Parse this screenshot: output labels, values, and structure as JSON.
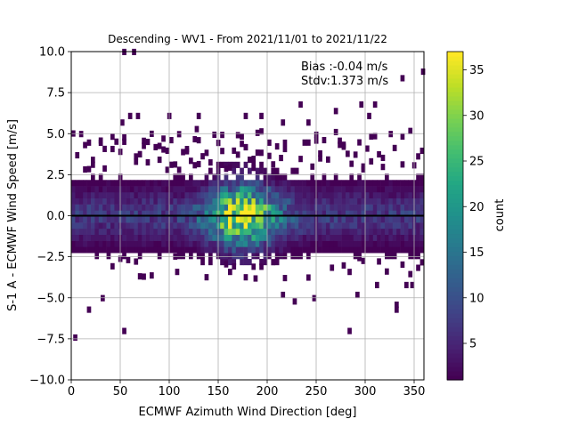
{
  "chart_data": {
    "type": "heatmap",
    "title": "Descending - WV1 - From 2021/11/01 to 2021/11/22",
    "xlabel": "ECMWF Azimuth Wind Direction [deg]",
    "ylabel": "S-1 A - ECMWF Wind Speed [m/s]",
    "xlim": [
      0,
      360
    ],
    "ylim": [
      -10,
      10
    ],
    "xticks": [
      0,
      50,
      100,
      150,
      200,
      250,
      300,
      350
    ],
    "yticks": [
      -10.0,
      -7.5,
      -5.0,
      -2.5,
      0.0,
      2.5,
      5.0,
      7.5,
      10.0
    ],
    "ytick_labels": [
      "−10.0",
      "−7.5",
      "−5.0",
      "−2.5",
      "0.0",
      "2.5",
      "5.0",
      "7.5",
      "10.0"
    ],
    "grid": true,
    "annotations": [
      "Bias :-0.04 m/s",
      "Stdv:1.373 m/s"
    ],
    "reference_line_y": 0.0,
    "colormap": "viridis",
    "colorbar": {
      "label": "count",
      "min": 1,
      "max": 37,
      "ticks": [
        5,
        10,
        15,
        20,
        25,
        30,
        35
      ]
    },
    "bin_width_x": 4,
    "bin_width_y": 0.37,
    "description_of_density": "counts concentrated near y=0, strongest between x=130 and x=210 (peak ~37 near x=150-200), decreasing with |y|; sparse outliers up to |y|~10",
    "outliers": [
      {
        "x": 52,
        "y": 9.8
      },
      {
        "x": 62,
        "y": 9.8
      },
      {
        "x": 357,
        "y": 8.6
      },
      {
        "x": 336,
        "y": 8.2
      },
      {
        "x": 232,
        "y": 6.6
      },
      {
        "x": 294,
        "y": 6.6
      },
      {
        "x": 268,
        "y": 6.2
      },
      {
        "x": 308,
        "y": 6.6
      },
      {
        "x": 58,
        "y": 5.9
      },
      {
        "x": 66,
        "y": 5.9
      },
      {
        "x": 98,
        "y": 5.9
      },
      {
        "x": 176,
        "y": 5.9
      },
      {
        "x": 128,
        "y": 5.9
      },
      {
        "x": 192,
        "y": 5.9
      },
      {
        "x": 302,
        "y": 5.9
      },
      {
        "x": 50,
        "y": 5.5
      },
      {
        "x": 214,
        "y": 5.5
      },
      {
        "x": 240,
        "y": 5.5
      },
      {
        "x": 176,
        "y": 4.0
      },
      {
        "x": 248,
        "y": 4.4
      },
      {
        "x": 28,
        "y": 4.4
      },
      {
        "x": 8,
        "y": 4.8
      },
      {
        "x": 324,
        "y": 4.8
      },
      {
        "x": 126,
        "y": 5.1
      },
      {
        "x": 2,
        "y": -7.6
      },
      {
        "x": 52,
        "y": -7.2
      },
      {
        "x": 16,
        "y": -5.9
      },
      {
        "x": 30,
        "y": -5.2
      },
      {
        "x": 214,
        "y": -5.0
      },
      {
        "x": 226,
        "y": -5.4
      },
      {
        "x": 246,
        "y": -5.2
      },
      {
        "x": 330,
        "y": -5.6
      },
      {
        "x": 340,
        "y": -4.4
      },
      {
        "x": 346,
        "y": -4.4
      },
      {
        "x": 310,
        "y": -4.4
      },
      {
        "x": 290,
        "y": -5.0
      },
      {
        "x": 282,
        "y": -3.6
      },
      {
        "x": 186,
        "y": -4.0
      },
      {
        "x": 160,
        "y": -3.6
      },
      {
        "x": 106,
        "y": -3.6
      },
      {
        "x": 282,
        "y": -7.2
      },
      {
        "x": 330,
        "y": -5.9
      }
    ]
  }
}
